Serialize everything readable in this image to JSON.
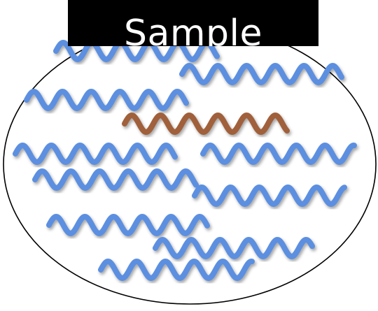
{
  "title": "Sample",
  "colors": {
    "background": "#ffffff",
    "ellipse_stroke": "#000000",
    "title_box": "#000000",
    "title_text": "#ffffff",
    "blue_strand": "#5b8fe0",
    "highlight_strand": "#a0603a"
  },
  "strands": [
    {
      "kind": "blue"
    },
    {
      "kind": "blue"
    },
    {
      "kind": "blue"
    },
    {
      "kind": "highlight"
    },
    {
      "kind": "blue"
    },
    {
      "kind": "blue"
    },
    {
      "kind": "blue"
    },
    {
      "kind": "blue"
    },
    {
      "kind": "blue"
    },
    {
      "kind": "blue"
    },
    {
      "kind": "blue"
    }
  ]
}
